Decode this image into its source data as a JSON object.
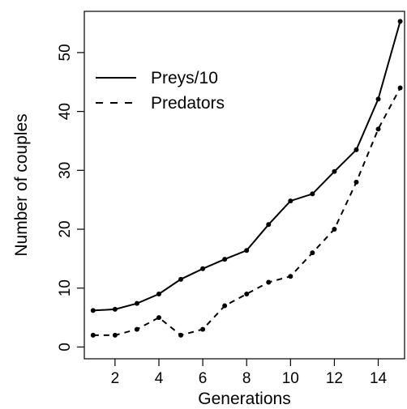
{
  "chart_data": {
    "type": "line",
    "xlabel": "Generations",
    "ylabel": "Number of couples",
    "xlim": [
      0.6,
      15.2
    ],
    "ylim": [
      -2,
      57
    ],
    "xticks": [
      2,
      4,
      6,
      8,
      10,
      12,
      14
    ],
    "yticks": [
      0,
      10,
      20,
      30,
      40,
      50
    ],
    "x": [
      1,
      2,
      3,
      4,
      5,
      6,
      7,
      8,
      9,
      10,
      11,
      12,
      13,
      14,
      15
    ],
    "grid": false,
    "legend_position": "top-left",
    "series": [
      {
        "name": "Preys/10",
        "style": "solid",
        "color": "#000000",
        "values": [
          6.2,
          6.4,
          7.4,
          9.0,
          11.5,
          13.3,
          14.9,
          16.4,
          20.8,
          24.8,
          26.0,
          29.8,
          33.5,
          42.1,
          55.3
        ]
      },
      {
        "name": "Predators",
        "style": "dashed",
        "color": "#000000",
        "values": [
          2,
          2,
          3,
          5,
          2,
          3,
          7,
          9,
          11,
          12,
          16,
          20,
          28,
          37,
          44
        ]
      }
    ]
  }
}
